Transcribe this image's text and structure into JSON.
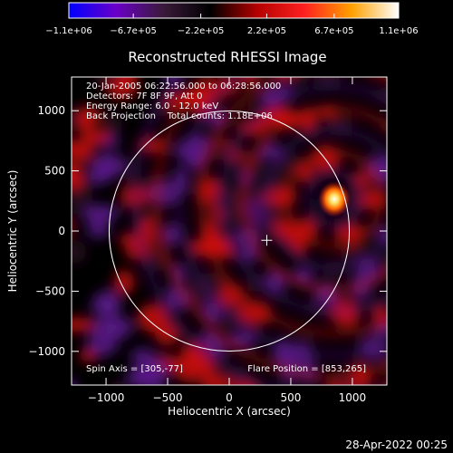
{
  "chart_data": {
    "type": "heatmap",
    "title": "Reconstructed RHESSI Image",
    "xlabel": "Heliocentric X (arcsec)",
    "ylabel": "Heliocentric Y (arcsec)",
    "xlim": [
      -1280,
      1280
    ],
    "ylim": [
      -1280,
      1280
    ],
    "xticks": [
      -1000,
      -500,
      0,
      500,
      1000
    ],
    "xtick_labels": [
      "−1000",
      "−500",
      "0",
      "500",
      "1000"
    ],
    "yticks": [
      -1000,
      -500,
      0,
      500,
      1000
    ],
    "ytick_labels": [
      "−1000",
      "−500",
      "0",
      "500",
      "1000"
    ],
    "colorbar": {
      "min": -1100000,
      "max": 1100000,
      "tick_labels": [
        "−1.1e+06",
        "−6.7e+05",
        "−2.2e+05",
        "2.2e+05",
        "6.7e+05",
        "1.1e+06"
      ],
      "tick_values": [
        -1100000,
        -670000,
        -220000,
        220000,
        670000,
        1100000
      ],
      "colors": [
        "#0000ff",
        "#6a00c8",
        "#3a1a3a",
        "#000000",
        "#b40000",
        "#ff2020",
        "#ffa000",
        "#ffffff"
      ]
    },
    "annotations": [
      "20-Jan-2005 06:22:56.000 to 06:28:56.000",
      "Detectors: 7F 8F 9F, Att 0",
      "Energy Range: 6.0 - 12.0 keV",
      "Back Projection    Total counts: 1.18E+06"
    ],
    "spin_axis_label": "Spin Axis = [305,-77]",
    "spin_axis": [
      305,
      -77
    ],
    "flare_position_label": "Flare Position = [853,265]",
    "flare_position": [
      853,
      265
    ],
    "solar_disk": {
      "center": [
        0,
        0
      ],
      "radius_arcsec": 975
    }
  },
  "timestamp": "28-Apr-2022 00:25"
}
